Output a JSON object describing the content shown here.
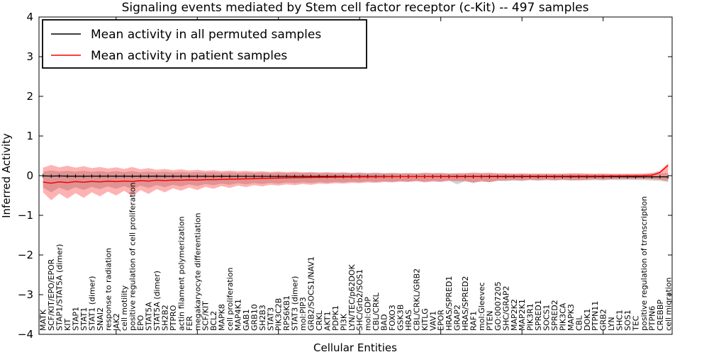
{
  "chart_data": {
    "type": "line",
    "title": "Signaling events mediated by Stem cell factor receptor (c-Kit) -- 497 samples",
    "xlabel": "Cellular Entities",
    "ylabel": "Inferred Activity",
    "ylim": [
      -4,
      4
    ],
    "yticks": [
      -4,
      -3,
      -2,
      -1,
      0,
      1,
      2,
      3,
      4
    ],
    "legend_position": "upper left",
    "grid": false,
    "colors": {
      "permuted_line": "#000000",
      "patient_line": "#ff0000",
      "permuted_band": "#808080",
      "patient_band": "#ff0000"
    },
    "categories": [
      "MATK",
      "SCF/KIT/EPO/EPOR",
      "STAP1/STAT5A (dimer)",
      "KIT",
      "STAP1",
      "STAT1",
      "STAT1 (dimer)",
      "SNAI2",
      "response to radiation",
      "JAK2",
      "cell motility",
      "positive regulation of cell proliferation",
      "EPO",
      "STAT5A",
      "STAT5A (dimer)",
      "SH2B2",
      "PTPRO",
      "actin filament polymerization",
      "FER",
      "megakaryocyte differentiation",
      "SCF/KIT",
      "BCL2",
      "MAPK8",
      "cell proliferation",
      "MAP4K1",
      "GAB1",
      "GRB10",
      "SH2B3",
      "STAT3",
      "PIK3C2B",
      "RPS6KB1",
      "STAT3 (dimer)",
      "mol:PIP3",
      "GRB2/SOCS1/NAV1",
      "CRKL",
      "AKT1",
      "PDPK1",
      "PI3K",
      "LYN/TEC/p62DOK",
      "SHC/Grb2/SOS1",
      "mol:GDP",
      "CBL/CRKL",
      "BAD",
      "FOXO3",
      "GSK3B",
      "HRAS",
      "CBL/CRKL/GRB2",
      "KITLG",
      "VAV1",
      "EPOR",
      "HRAS/SPRED1",
      "GRAP2",
      "HRAS/SPRED2",
      "RAF1",
      "mol:Gleevec",
      "PTEN",
      "GO:0007205",
      "SHC/GRAP2",
      "MAP2K2",
      "MAP2K1",
      "PIK3R1",
      "SPRED1",
      "SOCS1",
      "SPRED2",
      "PIK3CA",
      "MAPK3",
      "CBL",
      "DOK1",
      "PTPN11",
      "GRB2",
      "LYN",
      "SHC1",
      "SOS1",
      "TEC",
      "positive regulation of transcription",
      "PTPN6",
      "CREBBP",
      "cell migration"
    ],
    "series": [
      {
        "name": "Mean activity in all permuted samples",
        "color": "#000000",
        "values": [
          -0.005,
          -0.01,
          -0.008,
          -0.012,
          -0.01,
          -0.015,
          -0.01,
          -0.012,
          -0.011,
          -0.013,
          -0.012,
          -0.014,
          -0.012,
          -0.015,
          -0.013,
          -0.015,
          -0.014,
          -0.016,
          -0.014,
          -0.016,
          -0.015,
          -0.017,
          -0.015,
          -0.017,
          -0.016,
          -0.018,
          -0.016,
          -0.018,
          -0.017,
          -0.019,
          -0.017,
          -0.019,
          -0.018,
          -0.02,
          -0.018,
          -0.02,
          -0.019,
          -0.021,
          -0.019,
          -0.021,
          -0.02,
          -0.022,
          -0.02,
          -0.022,
          -0.021,
          -0.023,
          -0.021,
          -0.023,
          -0.022,
          -0.024,
          -0.022,
          -0.024,
          -0.023,
          -0.025,
          -0.023,
          -0.025,
          -0.024,
          -0.026,
          -0.024,
          -0.026,
          -0.025,
          -0.027,
          -0.025,
          -0.027,
          -0.026,
          -0.028,
          -0.026,
          -0.028,
          -0.027,
          -0.029,
          -0.027,
          -0.029,
          -0.028,
          -0.03,
          -0.028,
          -0.03,
          -0.029,
          -0.031
        ]
      },
      {
        "name": "Mean activity in patient samples",
        "color": "#ff0000",
        "values": [
          -0.16,
          -0.19,
          -0.155,
          -0.175,
          -0.15,
          -0.165,
          -0.145,
          -0.155,
          -0.14,
          -0.15,
          -0.135,
          -0.145,
          -0.125,
          -0.135,
          -0.115,
          -0.125,
          -0.11,
          -0.115,
          -0.105,
          -0.11,
          -0.1,
          -0.1,
          -0.095,
          -0.09,
          -0.085,
          -0.08,
          -0.075,
          -0.07,
          -0.065,
          -0.06,
          -0.055,
          -0.05,
          -0.048,
          -0.045,
          -0.042,
          -0.04,
          -0.038,
          -0.036,
          -0.034,
          -0.032,
          -0.03,
          -0.028,
          -0.026,
          -0.025,
          -0.024,
          -0.023,
          -0.022,
          -0.021,
          -0.02,
          -0.02,
          -0.019,
          -0.018,
          -0.018,
          -0.017,
          -0.017,
          -0.016,
          -0.016,
          -0.015,
          -0.015,
          -0.014,
          -0.014,
          -0.013,
          -0.013,
          -0.012,
          -0.012,
          -0.011,
          -0.011,
          -0.01,
          -0.01,
          -0.009,
          -0.008,
          -0.007,
          -0.006,
          -0.005,
          0.0,
          0.01,
          0.08,
          0.26
        ]
      }
    ],
    "bands": [
      {
        "name": "permuted-samples-band",
        "color": "#808080",
        "opacity": 0.35,
        "upper": [
          0.1,
          0.13,
          0.1,
          0.12,
          0.1,
          0.12,
          0.095,
          0.11,
          0.09,
          0.11,
          0.09,
          0.11,
          0.085,
          0.1,
          0.085,
          0.1,
          0.08,
          0.095,
          0.08,
          0.09,
          0.078,
          0.088,
          0.075,
          0.085,
          0.072,
          0.082,
          0.07,
          0.08,
          0.068,
          0.078,
          0.065,
          0.075,
          0.065,
          0.072,
          0.062,
          0.07,
          0.06,
          0.068,
          0.06,
          0.065,
          0.058,
          0.065,
          0.056,
          0.062,
          0.055,
          0.06,
          0.054,
          0.06,
          0.053,
          0.058,
          0.052,
          0.058,
          0.052,
          0.056,
          0.05,
          0.056,
          0.05,
          0.055,
          0.05,
          0.054,
          0.048,
          0.054,
          0.048,
          0.052,
          0.047,
          0.052,
          0.046,
          0.05,
          0.046,
          0.05,
          0.045,
          0.05,
          0.045,
          0.048,
          0.05,
          0.055,
          0.06,
          0.065
        ],
        "lower": [
          -0.3,
          -0.42,
          -0.3,
          -0.38,
          -0.29,
          -0.36,
          -0.28,
          -0.34,
          -0.27,
          -0.33,
          -0.26,
          -0.34,
          -0.25,
          -0.31,
          -0.24,
          -0.29,
          -0.23,
          -0.27,
          -0.22,
          -0.26,
          -0.21,
          -0.24,
          -0.2,
          -0.23,
          -0.19,
          -0.22,
          -0.185,
          -0.21,
          -0.18,
          -0.2,
          -0.17,
          -0.19,
          -0.165,
          -0.185,
          -0.16,
          -0.18,
          -0.155,
          -0.17,
          -0.15,
          -0.165,
          -0.145,
          -0.16,
          -0.14,
          -0.155,
          -0.135,
          -0.15,
          -0.13,
          -0.15,
          -0.13,
          -0.145,
          -0.125,
          -0.22,
          -0.14,
          -0.19,
          -0.13,
          -0.17,
          -0.125,
          -0.14,
          -0.12,
          -0.135,
          -0.115,
          -0.13,
          -0.115,
          -0.125,
          -0.11,
          -0.125,
          -0.11,
          -0.12,
          -0.11,
          -0.12,
          -0.105,
          -0.115,
          -0.105,
          -0.11,
          -0.11,
          -0.12,
          -0.13,
          -0.16
        ]
      },
      {
        "name": "patient-samples-band",
        "color": "#ff0000",
        "opacity": 0.3,
        "upper": [
          0.2,
          0.27,
          0.21,
          0.25,
          0.2,
          0.24,
          0.19,
          0.22,
          0.18,
          0.21,
          0.17,
          0.22,
          0.16,
          0.19,
          0.15,
          0.17,
          0.14,
          0.16,
          0.13,
          0.15,
          0.12,
          0.14,
          0.115,
          0.13,
          0.11,
          0.12,
          0.1,
          0.11,
          0.095,
          0.105,
          0.09,
          0.1,
          0.085,
          0.095,
          0.08,
          0.09,
          0.075,
          0.085,
          0.07,
          0.08,
          0.065,
          0.075,
          0.06,
          0.07,
          0.06,
          0.065,
          0.055,
          0.075,
          0.065,
          0.07,
          0.055,
          0.06,
          0.065,
          0.08,
          0.07,
          0.075,
          0.06,
          0.055,
          0.05,
          0.055,
          0.05,
          0.045,
          0.05,
          0.045,
          0.05,
          0.055,
          0.06,
          0.05,
          0.045,
          0.05,
          0.045,
          0.04,
          0.045,
          0.04,
          0.05,
          0.07,
          0.12,
          0.32
        ],
        "lower": [
          -0.42,
          -0.62,
          -0.45,
          -0.58,
          -0.44,
          -0.56,
          -0.42,
          -0.52,
          -0.4,
          -0.5,
          -0.38,
          -0.52,
          -0.36,
          -0.46,
          -0.34,
          -0.42,
          -0.32,
          -0.38,
          -0.3,
          -0.36,
          -0.28,
          -0.33,
          -0.26,
          -0.31,
          -0.25,
          -0.29,
          -0.24,
          -0.27,
          -0.23,
          -0.25,
          -0.22,
          -0.24,
          -0.21,
          -0.23,
          -0.2,
          -0.21,
          -0.19,
          -0.2,
          -0.18,
          -0.19,
          -0.17,
          -0.18,
          -0.16,
          -0.17,
          -0.15,
          -0.16,
          -0.14,
          -0.17,
          -0.15,
          -0.16,
          -0.13,
          -0.14,
          -0.14,
          -0.17,
          -0.15,
          -0.16,
          -0.13,
          -0.12,
          -0.11,
          -0.12,
          -0.1,
          -0.11,
          -0.1,
          -0.11,
          -0.1,
          -0.11,
          -0.12,
          -0.1,
          -0.09,
          -0.1,
          -0.09,
          -0.08,
          -0.085,
          -0.08,
          -0.085,
          -0.09,
          -0.1,
          -0.14
        ]
      }
    ]
  }
}
